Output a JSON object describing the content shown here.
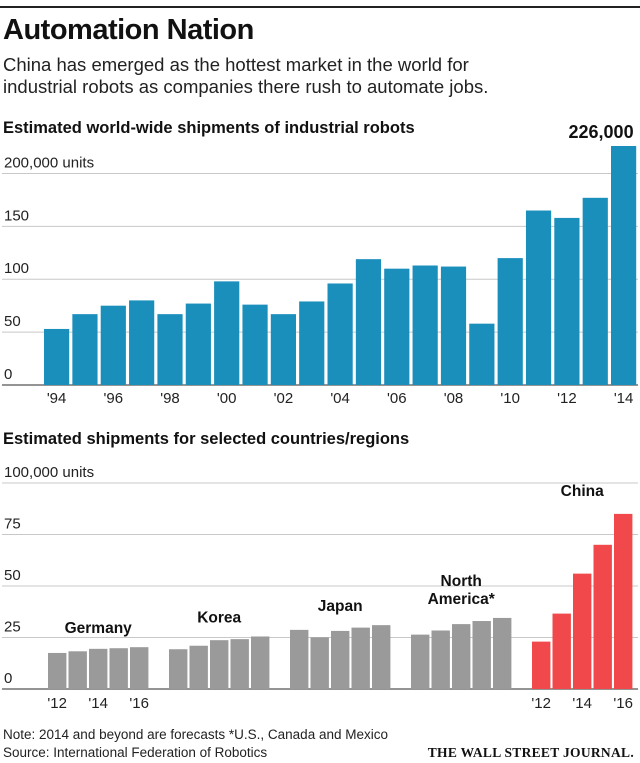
{
  "header": {
    "title": "Automation Nation",
    "subtitle_line1": "China has emerged as the hottest market in the world for",
    "subtitle_line2": "industrial robots as companies there rush to automate jobs."
  },
  "colors": {
    "world": "#1a8fbc",
    "region": "#9a9a9a",
    "china": "#f0484b",
    "grid": "#c8c8c8",
    "axis": "#555555"
  },
  "chart_data": [
    {
      "type": "bar",
      "title": "Estimated world-wide shipments of industrial robots",
      "ylabel": "units",
      "ylim": [
        0,
        226000
      ],
      "yticks": [
        {
          "value": 0,
          "label": "0"
        },
        {
          "value": 50000,
          "label": "50"
        },
        {
          "value": 100000,
          "label": "100"
        },
        {
          "value": 150000,
          "label": "150"
        },
        {
          "value": 200000,
          "label": "200,000 units"
        }
      ],
      "categories": [
        "1994",
        "1995",
        "1996",
        "1997",
        "1998",
        "1999",
        "2000",
        "2001",
        "2002",
        "2003",
        "2004",
        "2005",
        "2006",
        "2007",
        "2008",
        "2009",
        "2010",
        "2011",
        "2012",
        "2013",
        "2014"
      ],
      "values": [
        53000,
        67000,
        75000,
        80000,
        67000,
        77000,
        98000,
        76000,
        67000,
        79000,
        96000,
        119000,
        110000,
        113000,
        112000,
        58000,
        120000,
        165000,
        158000,
        177000,
        226000
      ],
      "xtick_labels": [
        {
          "index": 0,
          "label": "'94"
        },
        {
          "index": 2,
          "label": "'96"
        },
        {
          "index": 4,
          "label": "'98"
        },
        {
          "index": 6,
          "label": "'00"
        },
        {
          "index": 8,
          "label": "'02"
        },
        {
          "index": 10,
          "label": "'04"
        },
        {
          "index": 12,
          "label": "'06"
        },
        {
          "index": 14,
          "label": "'08"
        },
        {
          "index": 16,
          "label": "'10"
        },
        {
          "index": 18,
          "label": "'12"
        },
        {
          "index": 20,
          "label": "'14"
        }
      ],
      "annotations": [
        {
          "index": 20,
          "label": "226,000"
        }
      ]
    },
    {
      "type": "bar",
      "title": "Estimated shipments for selected countries/regions",
      "ylabel": "units",
      "ylim": [
        0,
        100000
      ],
      "yticks": [
        {
          "value": 0,
          "label": "0"
        },
        {
          "value": 25000,
          "label": "25"
        },
        {
          "value": 50000,
          "label": "50"
        },
        {
          "value": 75000,
          "label": "75"
        },
        {
          "value": 100000,
          "label": "100,000 units"
        }
      ],
      "years": [
        "2012",
        "2013",
        "2014",
        "2015",
        "2016"
      ],
      "series": [
        {
          "name": "Germany",
          "label_line1": "Germany",
          "label_line2": "",
          "values": [
            17500,
            18300,
            19500,
            19800,
            20300
          ]
        },
        {
          "name": "Korea",
          "label_line1": "Korea",
          "label_line2": "",
          "values": [
            19300,
            21000,
            23700,
            24200,
            25500
          ]
        },
        {
          "name": "Japan",
          "label_line1": "Japan",
          "label_line2": "",
          "values": [
            28700,
            25100,
            28200,
            29800,
            31000
          ]
        },
        {
          "name": "North America*",
          "label_line1": "North",
          "label_line2": "America*",
          "values": [
            26400,
            28400,
            31500,
            33000,
            34500
          ]
        },
        {
          "name": "China",
          "label_line1": "China",
          "label_line2": "",
          "values": [
            23000,
            36600,
            56000,
            70000,
            85000
          ]
        }
      ],
      "xtick_labels": [
        "'12",
        "'14",
        "'16"
      ]
    }
  ],
  "footer": {
    "note": "Note: 2014 and beyond are forecasts   *U.S., Canada and Mexico",
    "source": "Source: International Federation of Robotics",
    "credit": "THE WALL STREET JOURNAL."
  }
}
